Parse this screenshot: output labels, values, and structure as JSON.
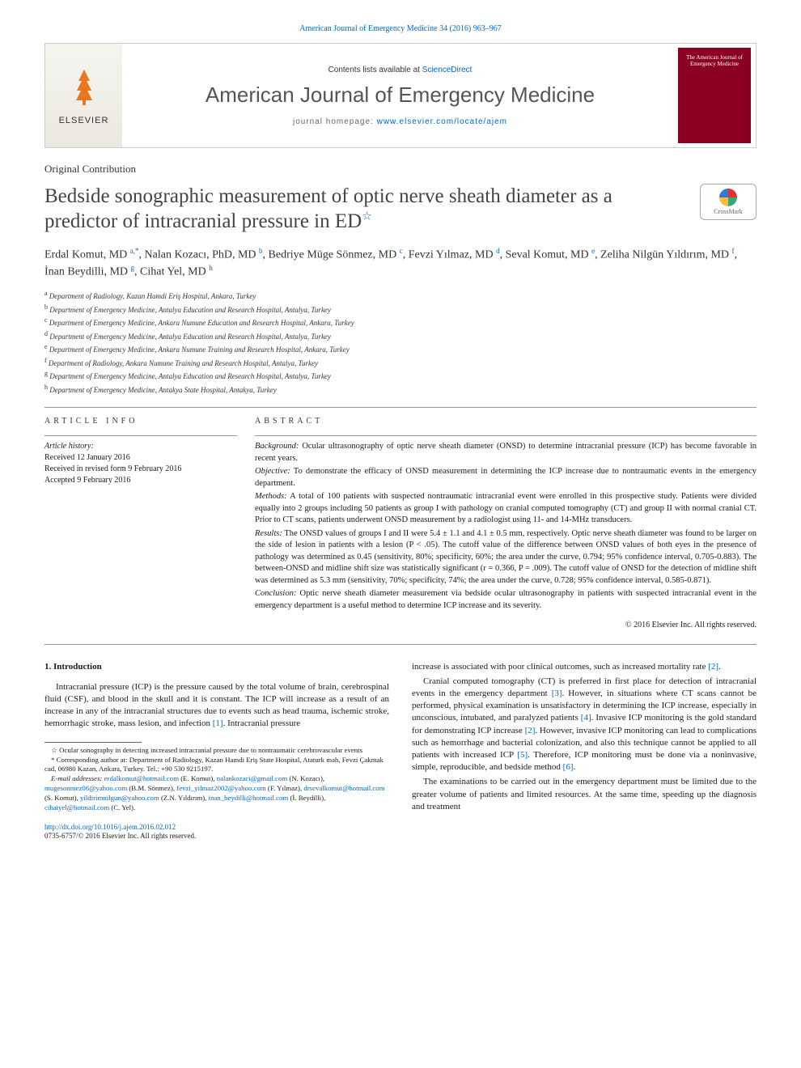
{
  "header_citation": "American Journal of Emergency Medicine 34 (2016) 963–967",
  "banner": {
    "elsevier_text": "ELSEVIER",
    "contents_prefix": "Contents lists available at ",
    "contents_link": "ScienceDirect",
    "journal_name": "American Journal of Emergency Medicine",
    "homepage_prefix": "journal homepage: ",
    "homepage_link": "www.elsevier.com/locate/ajem",
    "cover_text": "The American Journal of Emergency Medicine"
  },
  "article_type": "Original Contribution",
  "title": "Bedside sonographic measurement of optic nerve sheath diameter as a predictor of intracranial pressure in ED",
  "crossmark_label": "CrossMark",
  "authors_html": "Erdal Komut, MD <sup>a,*</sup>, Nalan Kozacı, PhD, MD <sup>b</sup>, Bedriye Müge Sönmez, MD <sup>c</sup>, Fevzi Yılmaz, MD <sup>d</sup>, Seval Komut, MD <sup>e</sup>, Zeliha Nilgün Yıldırım, MD <sup>f</sup>, İnan Beydilli, MD <sup>g</sup>, Cihat Yel, MD <sup>h</sup>",
  "affiliations": [
    {
      "key": "a",
      "text": "Department of Radiology, Kazan Hamdi Eriş Hospital, Ankara, Turkey"
    },
    {
      "key": "b",
      "text": "Department of Emergency Medicine, Antalya Education and Research Hospital, Antalya, Turkey"
    },
    {
      "key": "c",
      "text": "Department of Emergency Medicine, Ankara Numune Education and Research Hospital, Ankara, Turkey"
    },
    {
      "key": "d",
      "text": "Department of Emergency Medicine, Antalya Education and Research Hospital, Antalya, Turkey"
    },
    {
      "key": "e",
      "text": "Department of Emergency Medicine, Ankara Numune Training and Research Hospital, Ankara, Turkey"
    },
    {
      "key": "f",
      "text": "Department of Radiology, Ankara Numune Training and Research Hospital, Antalya, Turkey"
    },
    {
      "key": "g",
      "text": "Department of Emergency Medicine, Antalya Education and Research Hospital, Antalya, Turkey"
    },
    {
      "key": "h",
      "text": "Department of Emergency Medicine, Antakya State Hospital, Antakya, Turkey"
    }
  ],
  "info_heading": "article info",
  "abstract_heading": "abstract",
  "history": {
    "label": "Article history:",
    "received": "Received 12 January 2016",
    "revised": "Received in revised form 9 February 2016",
    "accepted": "Accepted 9 February 2016"
  },
  "abstract": {
    "background_label": "Background:",
    "background": "Ocular ultrasonography of optic nerve sheath diameter (ONSD) to determine intracranial pressure (ICP) has become favorable in recent years.",
    "objective_label": "Objective:",
    "objective": "To demonstrate the efficacy of ONSD measurement in determining the ICP increase due to nontraumatic events in the emergency department.",
    "methods_label": "Methods:",
    "methods": "A total of 100 patients with suspected nontraumatic intracranial event were enrolled in this prospective study. Patients were divided equally into 2 groups including 50 patients as group I with pathology on cranial computed tomography (CT) and group II with normal cranial CT. Prior to CT scans, patients underwent ONSD measurement by a radiologist using 11- and 14-MHz transducers.",
    "results_label": "Results:",
    "results": "The ONSD values of groups I and II were 5.4 ± 1.1 and 4.1 ± 0.5 mm, respectively. Optic nerve sheath diameter was found to be larger on the side of lesion in patients with a lesion (P < .05). The cutoff value of the difference between ONSD values of both eyes in the presence of pathology was determined as 0.45 (sensitivity, 80%; specificity, 60%; the area under the curve, 0.794; 95% confidence interval, 0.705-0.883). The between-ONSD and midline shift size was statistically significant (r = 0.366, P = .009). The cutoff value of ONSD for the detection of midline shift was determined as 5.3 mm (sensitivity, 70%; specificity, 74%; the area under the curve, 0.728; 95% confidence interval, 0.585-0.871).",
    "conclusion_label": "Conclusion:",
    "conclusion": "Optic nerve sheath diameter measurement via bedside ocular ultrasonography in patients with suspected intracranial event in the emergency department is a useful method to determine ICP increase and its severity."
  },
  "copyright": "© 2016 Elsevier Inc. All rights reserved.",
  "intro_heading": "1. Introduction",
  "body": {
    "p1": "Intracranial pressure (ICP) is the pressure caused by the total volume of brain, cerebrospinal fluid (CSF), and blood in the skull and it is constant. The ICP will increase as a result of an increase in any of the intracranial structures due to events such as head trauma, ischemic stroke, hemorrhagic stroke, mass lesion, and infection ",
    "p1_ref": "[1]",
    "p1_tail": ". Intracranial pressure",
    "p2_lead": "increase is associated with poor clinical outcomes, such as increased mortality rate ",
    "p2_ref": "[2]",
    "p2_tail": ".",
    "p3": "Cranial computed tomography (CT) is preferred in first place for detection of intracranial events in the emergency department ",
    "p3_ref": "[3]",
    "p3_mid": ". However, in situations where CT scans cannot be performed, physical examination is unsatisfactory in determining the ICP increase, especially in unconscious, intubated, and paralyzed patients ",
    "p3_ref2": "[4]",
    "p3_mid2": ". Invasive ICP monitoring is the gold standard for demonstrating ICP increase ",
    "p3_ref3": "[2]",
    "p3_mid3": ". However, invasive ICP monitoring can lead to complications such as hemorrhage and bacterial colonization, and also this technique cannot be applied to all patients with increased ICP ",
    "p3_ref4": "[5]",
    "p3_mid4": ". Therefore, ICP monitoring must be done via a noninvasive, simple, reproducible, and bedside method ",
    "p3_ref5": "[6]",
    "p3_tail": ".",
    "p4": "The examinations to be carried out in the emergency department must be limited due to the greater volume of patients and limited resources. At the same time, speeding up the diagnosis and treatment"
  },
  "footnotes": {
    "star": "Ocular sonography in detecting increased intracranial pressure due to nontraumatic cerebrovascular events",
    "corr": "Corresponding author at: Department of Radiology, Kazan Hamdi Eriş State Hospital, Ataturk mah, Fevzi Çakmak cad, 06980 Kazan, Ankara, Turkey. Tel.: +90 530 9215197.",
    "emails_label": "E-mail addresses:",
    "emails": [
      {
        "addr": "erdalkomut@hotmail.com",
        "who": "(E. Komut)"
      },
      {
        "addr": "nalankozaci@gmail.com",
        "who": "(N. Kozacı)"
      },
      {
        "addr": "mugesonmez06@yahoo.com",
        "who": "(B.M. Sönmez)"
      },
      {
        "addr": "fevzi_yilmaz2002@yahoo.com",
        "who": "(F. Yılmaz)"
      },
      {
        "addr": "drsevalkomut@hotmail.com",
        "who": "(S. Komut)"
      },
      {
        "addr": "yildirimnilgun@yahoo.com",
        "who": "(Z.N. Yıldırım)"
      },
      {
        "addr": "inan_beydilli@hotmail.com",
        "who": "(İ. Beydilli)"
      },
      {
        "addr": "cihatyel@hotmail.com",
        "who": "(C. Yel)"
      }
    ]
  },
  "doi": {
    "link": "http://dx.doi.org/10.1016/j.ajem.2016.02.012",
    "issn_line": "0735-6757/© 2016 Elsevier Inc. All rights reserved."
  },
  "colors": {
    "link": "#0066cc",
    "elsevier_orange": "#e87722",
    "journal_cover": "#8b0020",
    "text": "#1a1a1a",
    "muted": "#555"
  }
}
